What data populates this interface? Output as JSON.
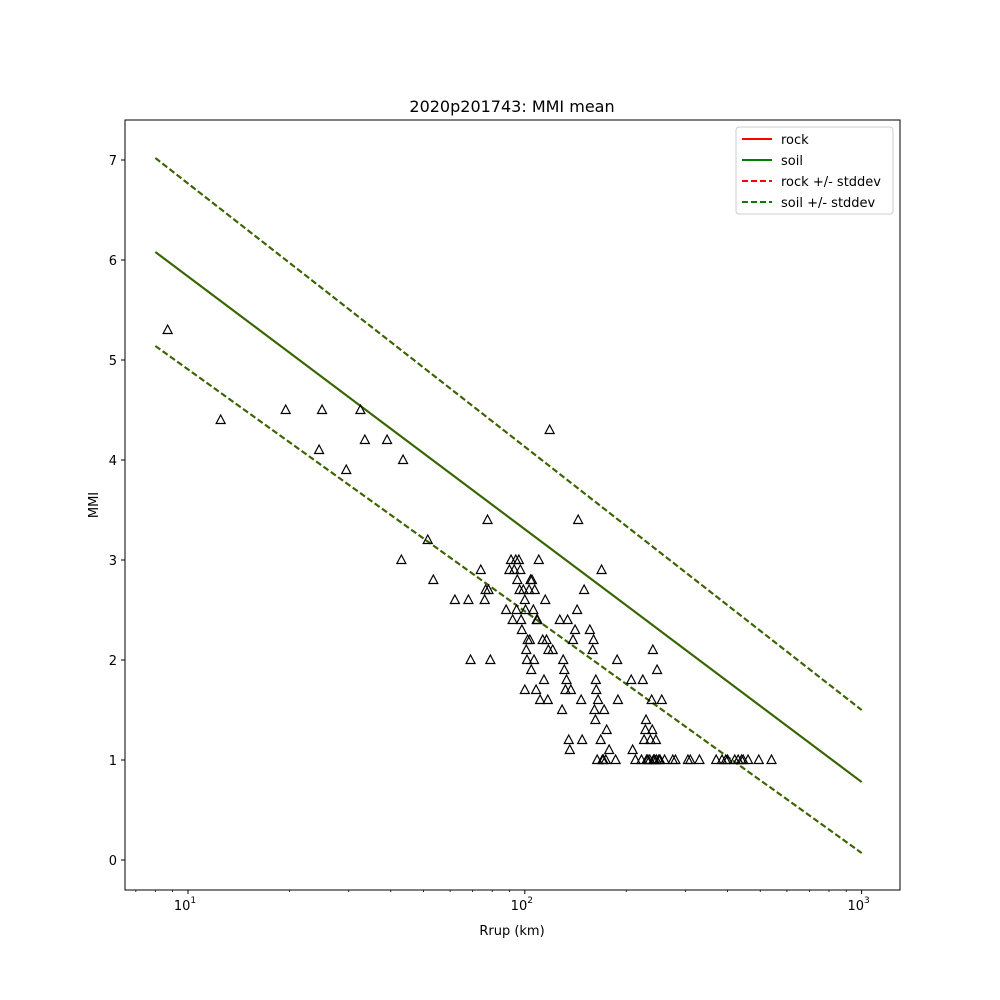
{
  "chart_data": {
    "type": "scatter",
    "title": "2020p201743: MMI mean",
    "xlabel": "Rrup (km)",
    "ylabel": "MMI",
    "xscale": "log",
    "xlim": [
      6.5,
      1300
    ],
    "ylim": [
      -0.3,
      7.4
    ],
    "yticks": [
      0,
      1,
      2,
      3,
      4,
      5,
      6,
      7
    ],
    "xticks": [
      {
        "value": 10,
        "base": "10",
        "exp": "1"
      },
      {
        "value": 100,
        "base": "10",
        "exp": "2"
      },
      {
        "value": 1000,
        "base": "10",
        "exp": "3"
      }
    ],
    "grid": false,
    "legend_position": "top-right",
    "legend": [
      {
        "label": "rock",
        "color": "#ff0000",
        "dash": false
      },
      {
        "label": "soil",
        "color": "#008000",
        "dash": false
      },
      {
        "label": "rock +/- stddev",
        "color": "#ff0000",
        "dash": true
      },
      {
        "label": "soil +/- stddev",
        "color": "#008000",
        "dash": true
      }
    ],
    "lines": [
      {
        "name": "rock",
        "color": "#ff0000",
        "dash": false,
        "points": [
          [
            8,
            6.08
          ],
          [
            1000,
            0.78
          ]
        ]
      },
      {
        "name": "rock +/- stddev",
        "color": "#ff0000",
        "dash": true,
        "points": [
          [
            8,
            7.02
          ],
          [
            1000,
            1.5
          ]
        ]
      },
      {
        "name": "rock +/- stddev",
        "color": "#ff0000",
        "dash": true,
        "points": [
          [
            8,
            5.14
          ],
          [
            1000,
            0.07
          ]
        ]
      },
      {
        "name": "soil",
        "color": "#2b6d00",
        "dash": false,
        "points": [
          [
            8,
            6.08
          ],
          [
            1000,
            0.78
          ]
        ]
      },
      {
        "name": "soil +/- stddev",
        "color": "#2b6d00",
        "dash": true,
        "points": [
          [
            8,
            7.02
          ],
          [
            1000,
            1.5
          ]
        ]
      },
      {
        "name": "soil +/- stddev",
        "color": "#2b6d00",
        "dash": true,
        "points": [
          [
            8,
            5.14
          ],
          [
            1000,
            0.07
          ]
        ]
      }
    ],
    "points": [
      [
        8.7,
        5.3
      ],
      [
        12.5,
        4.4
      ],
      [
        19.5,
        4.5
      ],
      [
        25,
        4.5
      ],
      [
        24.5,
        4.1
      ],
      [
        29.5,
        3.9
      ],
      [
        32.5,
        4.5
      ],
      [
        33.5,
        4.2
      ],
      [
        39,
        4.2
      ],
      [
        43.5,
        4.0
      ],
      [
        43,
        3.0
      ],
      [
        51.5,
        3.2
      ],
      [
        53.5,
        2.8
      ],
      [
        62,
        2.6
      ],
      [
        68,
        2.6
      ],
      [
        69,
        2.0
      ],
      [
        74,
        2.9
      ],
      [
        76,
        2.6
      ],
      [
        76.5,
        2.7
      ],
      [
        78,
        2.7
      ],
      [
        79,
        2.0
      ],
      [
        77.5,
        3.4
      ],
      [
        88,
        2.5
      ],
      [
        90,
        2.9
      ],
      [
        91,
        3.0
      ],
      [
        92,
        2.4
      ],
      [
        93,
        2.9
      ],
      [
        94,
        3.0
      ],
      [
        94.5,
        2.5
      ],
      [
        95,
        2.8
      ],
      [
        96,
        3.0
      ],
      [
        96.5,
        2.7
      ],
      [
        97,
        2.9
      ],
      [
        97.5,
        2.4
      ],
      [
        98,
        2.3
      ],
      [
        99,
        2.7
      ],
      [
        100,
        2.6
      ],
      [
        100.5,
        2.5
      ],
      [
        101,
        2.1
      ],
      [
        101.5,
        2.0
      ],
      [
        100,
        1.7
      ],
      [
        102,
        2.2
      ],
      [
        103,
        2.7
      ],
      [
        103.5,
        2.2
      ],
      [
        104,
        2.8
      ],
      [
        104.5,
        1.9
      ],
      [
        105,
        2.8
      ],
      [
        106,
        2.5
      ],
      [
        106.5,
        2.0
      ],
      [
        107,
        2.7
      ],
      [
        108,
        1.7
      ],
      [
        108.5,
        2.4
      ],
      [
        109,
        2.4
      ],
      [
        110,
        3.0
      ],
      [
        111,
        1.6
      ],
      [
        113,
        2.2
      ],
      [
        114,
        1.8
      ],
      [
        115,
        2.6
      ],
      [
        116,
        2.2
      ],
      [
        117,
        1.6
      ],
      [
        117.5,
        2.1
      ],
      [
        118.5,
        4.3
      ],
      [
        121,
        2.1
      ],
      [
        127,
        2.4
      ],
      [
        129,
        1.5
      ],
      [
        130,
        2.0
      ],
      [
        131,
        1.9
      ],
      [
        132,
        1.7
      ],
      [
        133,
        1.8
      ],
      [
        134,
        2.4
      ],
      [
        135,
        1.2
      ],
      [
        136,
        1.1
      ],
      [
        137,
        1.7
      ],
      [
        139,
        2.2
      ],
      [
        141,
        2.3
      ],
      [
        143,
        2.5
      ],
      [
        144,
        3.4
      ],
      [
        147,
        1.6
      ],
      [
        148,
        1.2
      ],
      [
        150,
        2.7
      ],
      [
        156,
        2.3
      ],
      [
        159,
        2.1
      ],
      [
        160,
        2.2
      ],
      [
        161,
        1.5
      ],
      [
        162,
        1.4
      ],
      [
        162.5,
        1.8
      ],
      [
        163,
        1.7
      ],
      [
        164,
        1.0
      ],
      [
        165,
        1.6
      ],
      [
        168,
        1.2
      ],
      [
        169,
        2.9
      ],
      [
        170,
        1.0
      ],
      [
        171,
        1.0
      ],
      [
        172,
        1.5
      ],
      [
        174,
        1.0
      ],
      [
        175,
        1.3
      ],
      [
        178,
        1.1
      ],
      [
        186,
        1.0
      ],
      [
        188,
        2.0
      ],
      [
        189,
        1.6
      ],
      [
        207,
        1.8
      ],
      [
        209,
        1.1
      ],
      [
        213,
        1.0
      ],
      [
        222,
        1.0
      ],
      [
        224,
        1.8
      ],
      [
        226,
        1.2
      ],
      [
        228,
        1.3
      ],
      [
        229,
        1.4
      ],
      [
        230,
        1.0
      ],
      [
        232,
        1.0
      ],
      [
        235,
        1.0
      ],
      [
        236,
        1.2
      ],
      [
        238,
        1.6
      ],
      [
        239,
        1.3
      ],
      [
        240,
        2.1
      ],
      [
        241,
        1.0
      ],
      [
        243,
        1.0
      ],
      [
        245,
        1.2
      ],
      [
        246,
        1.0
      ],
      [
        247,
        1.9
      ],
      [
        250,
        1.0
      ],
      [
        252,
        1.0
      ],
      [
        255,
        1.6
      ],
      [
        260,
        1.0
      ],
      [
        275,
        1.0
      ],
      [
        280,
        1.0
      ],
      [
        305,
        1.0
      ],
      [
        310,
        1.0
      ],
      [
        330,
        1.0
      ],
      [
        370,
        1.0
      ],
      [
        385,
        1.0
      ],
      [
        395,
        1.0
      ],
      [
        400,
        1.0
      ],
      [
        420,
        1.0
      ],
      [
        430,
        1.0
      ],
      [
        440,
        1.0
      ],
      [
        445,
        1.0
      ],
      [
        460,
        1.0
      ],
      [
        495,
        1.0
      ],
      [
        540,
        1.0
      ]
    ]
  }
}
